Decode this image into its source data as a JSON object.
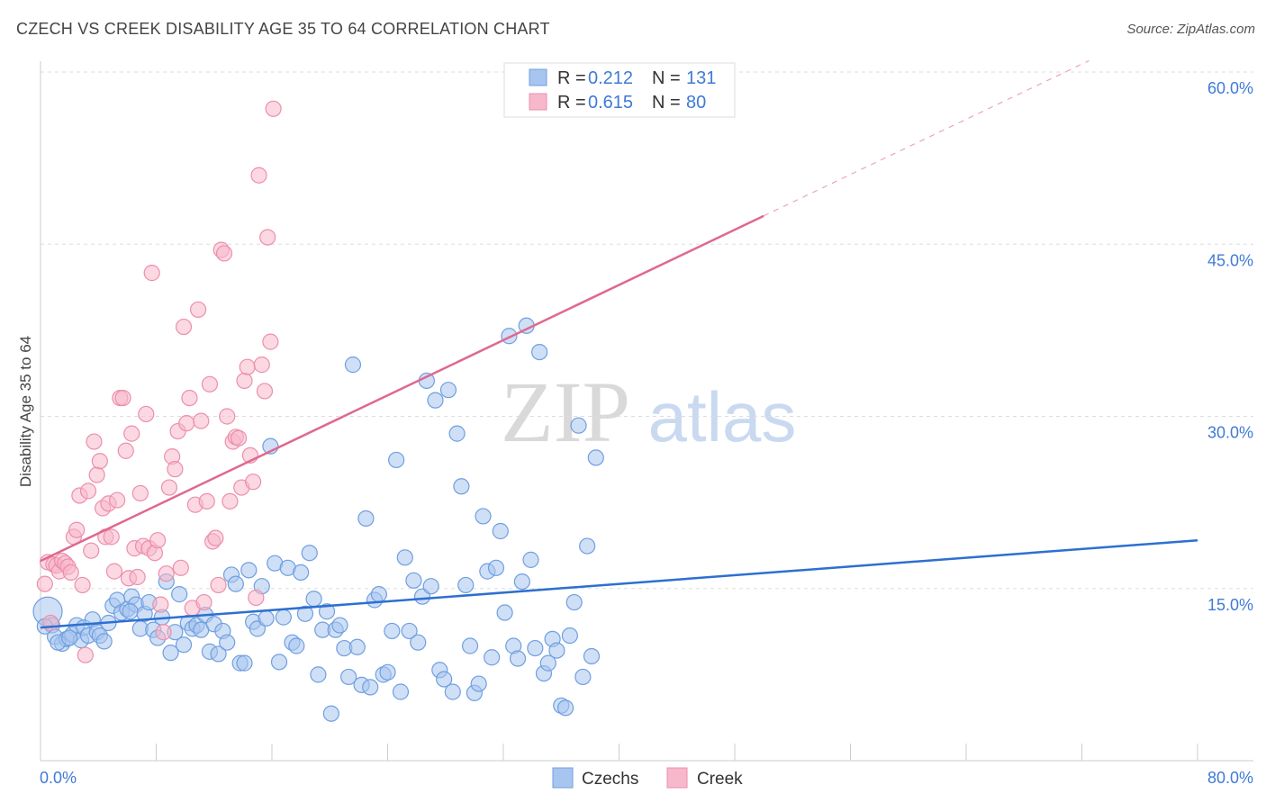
{
  "title": "CZECH VS CREEK DISABILITY AGE 35 TO 64 CORRELATION CHART",
  "source": "Source: ZipAtlas.com",
  "watermark": {
    "zip": "ZIP",
    "atlas": "atlas"
  },
  "colors": {
    "czechs_fill": "#a7c5ef",
    "czechs_stroke": "#6f9fe0",
    "czechs_line": "#2d6fd1",
    "creek_fill": "#f7b8cb",
    "creek_stroke": "#ec8fab",
    "creek_line": "#e0688f",
    "axis_text": "#3f7ad6",
    "grid": "#dddddd"
  },
  "legend_top": {
    "rows": [
      {
        "r_label": "R =",
        "r_value": "0.212",
        "n_label": "N =",
        "n_value": "131"
      },
      {
        "r_label": "R =",
        "r_value": "0.615",
        "n_label": "N =",
        "n_value": "80"
      }
    ]
  },
  "legend_bottom": {
    "items": [
      "Czechs",
      "Creek"
    ]
  },
  "chart_data": {
    "type": "scatter",
    "title": "CZECH VS CREEK DISABILITY AGE 35 TO 64 CORRELATION CHART",
    "xlabel": "",
    "ylabel": "Disability Age 35 to 64",
    "xlim": [
      0,
      80
    ],
    "ylim": [
      0,
      60
    ],
    "x_tick_labels": [
      "0.0%",
      "80.0%"
    ],
    "y_ticks": [
      15,
      30,
      45,
      60
    ],
    "y_tick_labels": [
      "15.0%",
      "30.0%",
      "45.0%",
      "60.0%"
    ],
    "grid": true,
    "legend_placement": "top-center",
    "series": [
      {
        "name": "Czechs",
        "r": 0.212,
        "n": 131,
        "trend": {
          "x": [
            0,
            80
          ],
          "y": [
            11.6,
            19.2
          ],
          "dashed_extension": false
        },
        "points": [
          [
            0.5,
            13.0
          ],
          [
            0.8,
            11.8
          ],
          [
            1.0,
            10.8
          ],
          [
            1.5,
            10.2
          ],
          [
            1.8,
            10.6
          ],
          [
            2.2,
            11.0
          ],
          [
            2.5,
            11.8
          ],
          [
            2.8,
            10.5
          ],
          [
            3.0,
            11.6
          ],
          [
            3.3,
            10.9
          ],
          [
            3.6,
            12.3
          ],
          [
            3.9,
            11.2
          ],
          [
            4.1,
            10.9
          ],
          [
            4.4,
            10.4
          ],
          [
            4.7,
            12.0
          ],
          [
            5.0,
            13.5
          ],
          [
            5.3,
            14.0
          ],
          [
            5.6,
            12.9
          ],
          [
            6.0,
            13.2
          ],
          [
            6.3,
            14.3
          ],
          [
            6.6,
            13.6
          ],
          [
            6.9,
            11.5
          ],
          [
            7.2,
            12.8
          ],
          [
            7.5,
            13.8
          ],
          [
            7.8,
            11.4
          ],
          [
            8.1,
            10.7
          ],
          [
            8.4,
            12.5
          ],
          [
            8.7,
            15.6
          ],
          [
            9.0,
            9.4
          ],
          [
            9.3,
            11.2
          ],
          [
            9.6,
            14.5
          ],
          [
            9.9,
            10.1
          ],
          [
            10.2,
            12.0
          ],
          [
            10.5,
            11.5
          ],
          [
            10.8,
            11.8
          ],
          [
            11.1,
            11.4
          ],
          [
            11.4,
            12.7
          ],
          [
            11.7,
            9.5
          ],
          [
            12.0,
            11.9
          ],
          [
            12.3,
            9.3
          ],
          [
            12.6,
            11.3
          ],
          [
            12.9,
            10.3
          ],
          [
            13.2,
            16.2
          ],
          [
            13.5,
            15.4
          ],
          [
            13.8,
            8.5
          ],
          [
            14.1,
            8.5
          ],
          [
            14.4,
            16.6
          ],
          [
            14.7,
            12.1
          ],
          [
            15.0,
            11.5
          ],
          [
            15.3,
            15.2
          ],
          [
            15.6,
            12.4
          ],
          [
            15.9,
            27.4
          ],
          [
            16.2,
            17.2
          ],
          [
            16.5,
            8.6
          ],
          [
            16.8,
            12.5
          ],
          [
            17.1,
            16.8
          ],
          [
            17.4,
            10.3
          ],
          [
            17.7,
            10.0
          ],
          [
            18.0,
            16.4
          ],
          [
            18.3,
            12.8
          ],
          [
            18.6,
            18.1
          ],
          [
            18.9,
            14.1
          ],
          [
            19.2,
            7.5
          ],
          [
            19.5,
            11.4
          ],
          [
            19.8,
            13.0
          ],
          [
            20.1,
            4.1
          ],
          [
            20.4,
            11.4
          ],
          [
            20.7,
            11.8
          ],
          [
            21.0,
            9.8
          ],
          [
            21.3,
            7.3
          ],
          [
            21.6,
            34.5
          ],
          [
            21.9,
            9.9
          ],
          [
            22.2,
            6.6
          ],
          [
            22.5,
            21.1
          ],
          [
            22.8,
            6.4
          ],
          [
            23.1,
            14.0
          ],
          [
            23.4,
            14.5
          ],
          [
            23.7,
            7.5
          ],
          [
            24.0,
            7.7
          ],
          [
            24.3,
            11.3
          ],
          [
            24.6,
            26.2
          ],
          [
            24.9,
            6.0
          ],
          [
            25.2,
            17.7
          ],
          [
            25.5,
            11.3
          ],
          [
            25.8,
            15.7
          ],
          [
            26.1,
            10.3
          ],
          [
            26.4,
            14.3
          ],
          [
            26.7,
            33.1
          ],
          [
            27.0,
            15.2
          ],
          [
            27.3,
            31.4
          ],
          [
            27.6,
            7.9
          ],
          [
            27.9,
            7.1
          ],
          [
            28.2,
            32.3
          ],
          [
            28.5,
            6.0
          ],
          [
            28.8,
            28.5
          ],
          [
            29.1,
            23.9
          ],
          [
            29.4,
            15.3
          ],
          [
            29.7,
            10.0
          ],
          [
            30.0,
            5.9
          ],
          [
            30.3,
            6.7
          ],
          [
            30.6,
            21.3
          ],
          [
            30.9,
            16.5
          ],
          [
            31.2,
            9.0
          ],
          [
            31.5,
            16.8
          ],
          [
            31.8,
            20.0
          ],
          [
            32.1,
            12.9
          ],
          [
            32.4,
            37.0
          ],
          [
            32.7,
            10.0
          ],
          [
            33.0,
            8.9
          ],
          [
            33.3,
            15.6
          ],
          [
            33.6,
            37.9
          ],
          [
            33.9,
            17.5
          ],
          [
            34.2,
            9.8
          ],
          [
            34.5,
            35.6
          ],
          [
            34.8,
            7.6
          ],
          [
            35.1,
            8.5
          ],
          [
            35.4,
            10.6
          ],
          [
            35.7,
            9.6
          ],
          [
            36.0,
            4.8
          ],
          [
            36.3,
            4.6
          ],
          [
            36.6,
            10.9
          ],
          [
            36.9,
            13.8
          ],
          [
            37.2,
            29.2
          ],
          [
            37.5,
            7.3
          ],
          [
            37.8,
            18.7
          ],
          [
            38.1,
            9.1
          ],
          [
            38.4,
            26.4
          ],
          [
            0.3,
            11.7
          ],
          [
            1.2,
            10.3
          ],
          [
            2.0,
            10.7
          ],
          [
            6.2,
            13.0
          ]
        ]
      },
      {
        "name": "Creek",
        "r": 0.615,
        "n": 80,
        "trend": {
          "x": [
            0,
            80
          ],
          "y": [
            17.4,
            65.5
          ],
          "dashed_extension": true
        },
        "points": [
          [
            0.3,
            15.4
          ],
          [
            0.5,
            17.3
          ],
          [
            0.7,
            12.0
          ],
          [
            0.9,
            17.1
          ],
          [
            1.1,
            17.0
          ],
          [
            1.3,
            16.5
          ],
          [
            1.5,
            17.4
          ],
          [
            1.7,
            17.2
          ],
          [
            1.9,
            16.9
          ],
          [
            2.1,
            16.4
          ],
          [
            2.3,
            19.5
          ],
          [
            2.5,
            20.1
          ],
          [
            2.7,
            23.1
          ],
          [
            2.9,
            15.3
          ],
          [
            3.1,
            9.2
          ],
          [
            3.3,
            23.5
          ],
          [
            3.5,
            18.3
          ],
          [
            3.7,
            27.8
          ],
          [
            3.9,
            24.9
          ],
          [
            4.1,
            26.1
          ],
          [
            4.3,
            22.0
          ],
          [
            4.5,
            19.5
          ],
          [
            4.7,
            22.4
          ],
          [
            4.9,
            19.5
          ],
          [
            5.1,
            16.5
          ],
          [
            5.3,
            22.7
          ],
          [
            5.5,
            31.6
          ],
          [
            5.7,
            31.6
          ],
          [
            5.9,
            27.0
          ],
          [
            6.1,
            15.9
          ],
          [
            6.3,
            28.5
          ],
          [
            6.5,
            18.5
          ],
          [
            6.7,
            16.0
          ],
          [
            6.9,
            23.3
          ],
          [
            7.1,
            18.7
          ],
          [
            7.3,
            30.2
          ],
          [
            7.5,
            18.5
          ],
          [
            7.7,
            42.5
          ],
          [
            7.9,
            18.1
          ],
          [
            8.1,
            19.2
          ],
          [
            8.3,
            13.6
          ],
          [
            8.5,
            11.2
          ],
          [
            8.7,
            16.3
          ],
          [
            8.9,
            23.8
          ],
          [
            9.1,
            26.5
          ],
          [
            9.3,
            25.4
          ],
          [
            9.5,
            28.7
          ],
          [
            9.7,
            16.8
          ],
          [
            9.9,
            37.8
          ],
          [
            10.1,
            29.4
          ],
          [
            10.3,
            31.6
          ],
          [
            10.5,
            13.3
          ],
          [
            10.7,
            22.3
          ],
          [
            10.9,
            39.3
          ],
          [
            11.1,
            29.6
          ],
          [
            11.3,
            13.8
          ],
          [
            11.5,
            22.6
          ],
          [
            11.7,
            32.8
          ],
          [
            11.9,
            19.1
          ],
          [
            12.1,
            19.4
          ],
          [
            12.3,
            15.3
          ],
          [
            12.5,
            44.5
          ],
          [
            12.7,
            44.2
          ],
          [
            12.9,
            30.0
          ],
          [
            13.1,
            22.6
          ],
          [
            13.3,
            27.8
          ],
          [
            13.5,
            28.2
          ],
          [
            13.7,
            28.1
          ],
          [
            13.9,
            23.8
          ],
          [
            14.1,
            33.1
          ],
          [
            14.3,
            34.3
          ],
          [
            14.5,
            26.6
          ],
          [
            14.7,
            24.3
          ],
          [
            14.9,
            14.2
          ],
          [
            15.1,
            51.0
          ],
          [
            15.3,
            34.5
          ],
          [
            15.5,
            32.2
          ],
          [
            15.7,
            45.6
          ],
          [
            15.9,
            36.5
          ],
          [
            16.1,
            56.8
          ]
        ]
      }
    ]
  }
}
